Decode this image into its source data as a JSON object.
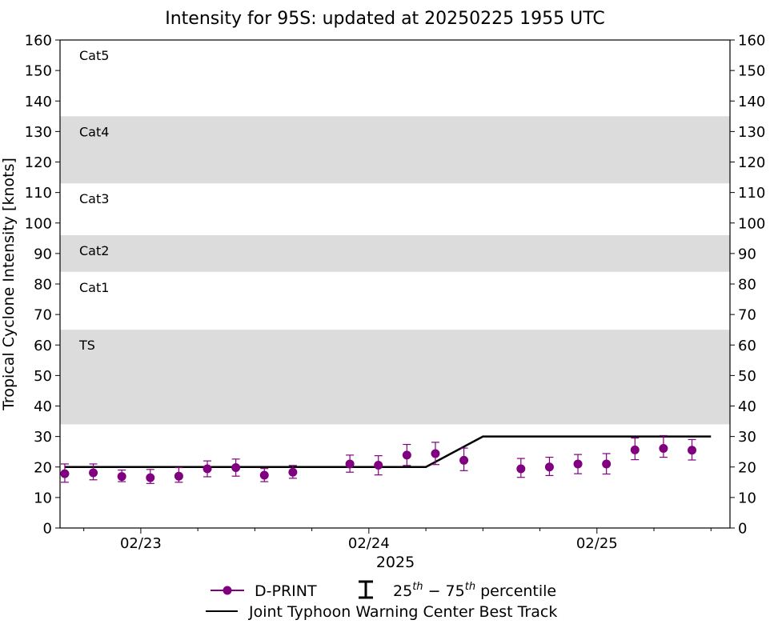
{
  "chart_data": {
    "type": "line",
    "title": "Intensity for 95S: updated at 20250225 1955 UTC",
    "xlabel": "2025",
    "ylabel": "Tropical Cyclone Intensity [knots]",
    "ylim": [
      0,
      160
    ],
    "yticks": [
      0,
      10,
      20,
      30,
      40,
      50,
      60,
      70,
      80,
      90,
      100,
      110,
      120,
      130,
      140,
      150,
      160
    ],
    "xlim": [
      "2025-02-22 15:30",
      "2025-02-25 14:00"
    ],
    "xticks": [
      {
        "label": "02/23",
        "time": "2025-02-23 00:00"
      },
      {
        "label": "02/24",
        "time": "2025-02-24 00:00"
      },
      {
        "label": "02/25",
        "time": "2025-02-25 00:00"
      }
    ],
    "minor_xticks": [
      "2025-02-22 18:00",
      "2025-02-23 06:00",
      "2025-02-23 12:00",
      "2025-02-23 18:00",
      "2025-02-24 06:00",
      "2025-02-24 12:00",
      "2025-02-24 18:00",
      "2025-02-25 06:00",
      "2025-02-25 12:00"
    ],
    "grid": false,
    "legend_position": "bottom",
    "category_bands": [
      {
        "label": "TS",
        "from": 34,
        "to": 65,
        "shaded": true
      },
      {
        "label": "Cat1",
        "from": 65,
        "to": 84,
        "shaded": false
      },
      {
        "label": "Cat2",
        "from": 84,
        "to": 96,
        "shaded": true
      },
      {
        "label": "Cat3",
        "from": 96,
        "to": 113,
        "shaded": false
      },
      {
        "label": "Cat4",
        "from": 113,
        "to": 135,
        "shaded": true
      },
      {
        "label": "Cat5",
        "from": 135,
        "to": 160,
        "shaded": false
      }
    ],
    "series": [
      {
        "name": "D-PRINT",
        "color": "#800080",
        "marker": "circle",
        "points": [
          {
            "t": "2025-02-22 16:00",
            "y": 17.8,
            "lo": 15.0,
            "hi": 21.0
          },
          {
            "t": "2025-02-22 19:00",
            "y": 18.1,
            "lo": 15.8,
            "hi": 21.0
          },
          {
            "t": "2025-02-22 22:00",
            "y": 16.9,
            "lo": 15.2,
            "hi": 19.0
          },
          {
            "t": "2025-02-23 01:00",
            "y": 16.5,
            "lo": 14.6,
            "hi": 19.2
          },
          {
            "t": "2025-02-23 04:00",
            "y": 17.0,
            "lo": 15.0,
            "hi": 19.8
          },
          {
            "t": "2025-02-23 07:00",
            "y": 19.4,
            "lo": 16.8,
            "hi": 22.0
          },
          {
            "t": "2025-02-23 10:00",
            "y": 19.8,
            "lo": 17.0,
            "hi": 22.6
          },
          {
            "t": "2025-02-23 13:00",
            "y": 17.3,
            "lo": 15.2,
            "hi": 19.5
          },
          {
            "t": "2025-02-23 16:00",
            "y": 18.3,
            "lo": 16.3,
            "hi": 20.5
          },
          {
            "t": "2025-02-23 22:00",
            "y": 21.0,
            "lo": 18.3,
            "hi": 23.9
          },
          {
            "t": "2025-02-24 01:00",
            "y": 20.6,
            "lo": 17.4,
            "hi": 23.7
          },
          {
            "t": "2025-02-24 04:00",
            "y": 23.9,
            "lo": 20.5,
            "hi": 27.4
          },
          {
            "t": "2025-02-24 07:00",
            "y": 24.4,
            "lo": 20.8,
            "hi": 28.1
          },
          {
            "t": "2025-02-24 10:00",
            "y": 22.2,
            "lo": 18.8,
            "hi": 26.2
          },
          {
            "t": "2025-02-24 16:00",
            "y": 19.4,
            "lo": 16.6,
            "hi": 22.8
          },
          {
            "t": "2025-02-24 19:00",
            "y": 20.0,
            "lo": 17.2,
            "hi": 23.2
          },
          {
            "t": "2025-02-24 22:00",
            "y": 21.0,
            "lo": 17.8,
            "hi": 24.1
          },
          {
            "t": "2025-02-25 01:00",
            "y": 21.0,
            "lo": 17.7,
            "hi": 24.4
          },
          {
            "t": "2025-02-25 04:00",
            "y": 25.6,
            "lo": 22.4,
            "hi": 29.5
          },
          {
            "t": "2025-02-25 07:00",
            "y": 26.1,
            "lo": 23.2,
            "hi": 30.3
          },
          {
            "t": "2025-02-25 10:00",
            "y": 25.5,
            "lo": 22.3,
            "hi": 29.0
          }
        ]
      },
      {
        "name": "Joint Typhoon Warning Center Best Track",
        "color": "#000000",
        "points": [
          {
            "t": "2025-02-22 16:00",
            "y": 20
          },
          {
            "t": "2025-02-24 06:00",
            "y": 20
          },
          {
            "t": "2025-02-24 12:00",
            "y": 30
          },
          {
            "t": "2025-02-25 12:00",
            "y": 30
          }
        ]
      }
    ],
    "legend": {
      "dprint": "D-PRINT",
      "percentile_pre": "25",
      "percentile_sup1": "th",
      "percentile_mid": " − 75",
      "percentile_sup2": "th",
      "percentile_post": " percentile",
      "best_track": "Joint Typhoon Warning Center Best Track"
    },
    "colors": {
      "band_shade": "#dcdcdc",
      "dprint": "#800080",
      "best_track": "#000000"
    }
  }
}
